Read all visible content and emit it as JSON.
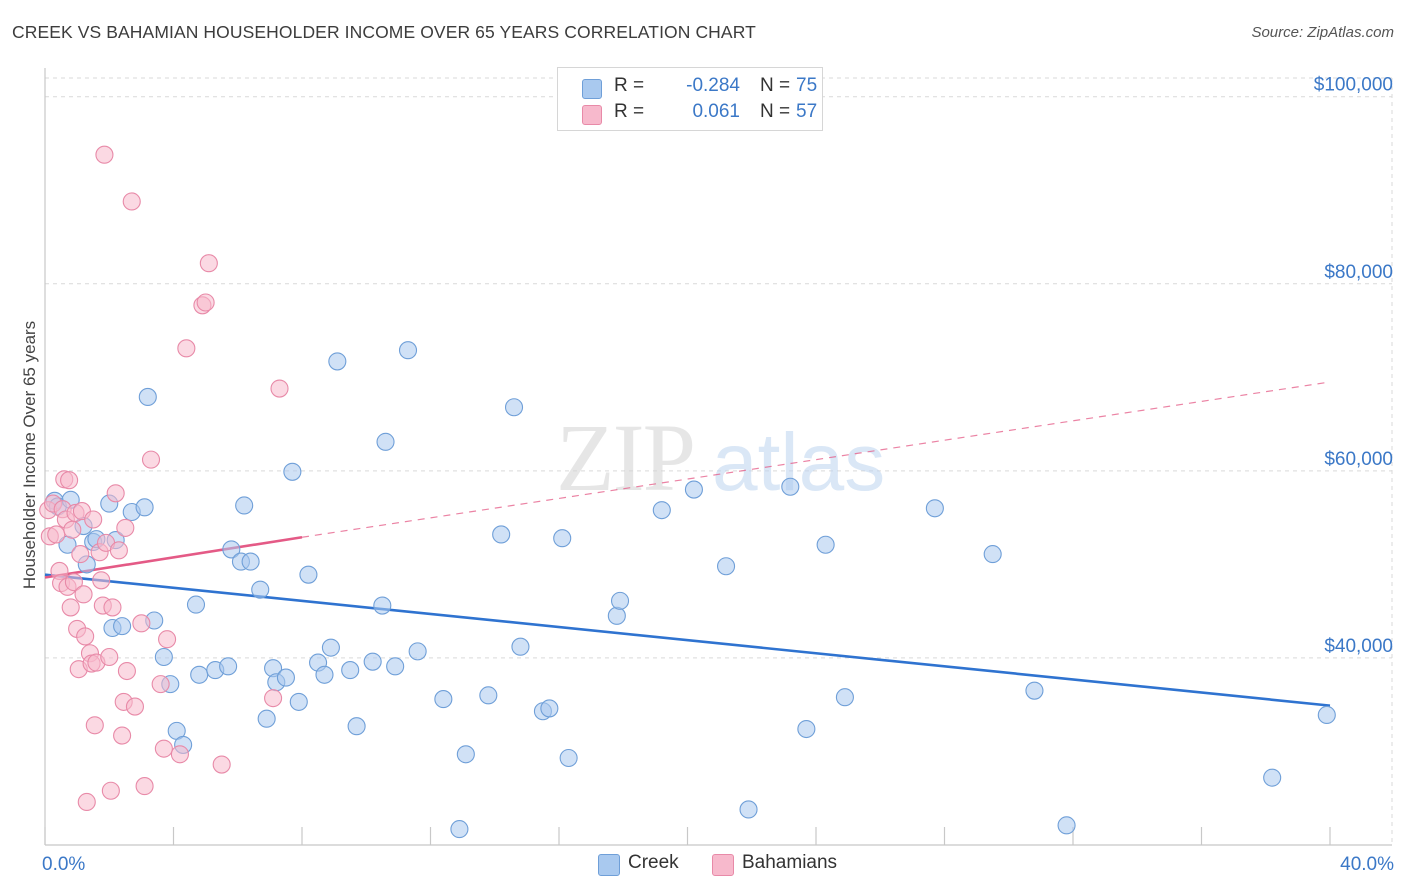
{
  "header": {
    "title": "CREEK VS BAHAMIAN HOUSEHOLDER INCOME OVER 65 YEARS CORRELATION CHART",
    "source": "Source: ZipAtlas.com"
  },
  "watermark": {
    "zip": "ZIP",
    "atlas": "atlas"
  },
  "legend": {
    "rows": [
      {
        "r_label": "R =",
        "r_value": "-0.284",
        "n_label": "N =",
        "n_value": "75"
      },
      {
        "r_label": "R =",
        "r_value": "0.061",
        "n_label": "N =",
        "n_value": "57"
      }
    ],
    "bottom": [
      {
        "label": "Creek"
      },
      {
        "label": "Bahamians"
      }
    ]
  },
  "colors": {
    "creek_fill": "#a9c9ef",
    "creek_stroke": "#6f9fd8",
    "creek_line": "#2f73d0",
    "bahamian_fill": "#f7b9cc",
    "bahamian_stroke": "#e88aa8",
    "bahamian_line": "#e45a86",
    "grid": "#d9d9d9",
    "axis_text": "#3b78c7"
  },
  "chart_data": {
    "type": "scatter",
    "title": "CREEK VS BAHAMIAN HOUSEHOLDER INCOME OVER 65 YEARS CORRELATION CHART",
    "xlabel": "",
    "ylabel": "Householder Income Over 65 years",
    "xlim": [
      0,
      40
    ],
    "ylim": [
      20000,
      102000
    ],
    "x_tick_labels": [
      "0.0%",
      "40.0%"
    ],
    "y_ticks": [
      40000,
      60000,
      80000,
      100000
    ],
    "y_tick_labels": [
      "$40,000",
      "$60,000",
      "$80,000",
      "$100,000"
    ],
    "grid": true,
    "legend_position": "top-center",
    "series": [
      {
        "name": "Creek",
        "points": [
          [
            0.3,
            56800
          ],
          [
            0.4,
            56200
          ],
          [
            0.7,
            52100
          ],
          [
            0.8,
            56900
          ],
          [
            1.2,
            54100
          ],
          [
            1.3,
            50000
          ],
          [
            1.5,
            52400
          ],
          [
            1.6,
            52700
          ],
          [
            2.0,
            56500
          ],
          [
            2.1,
            43200
          ],
          [
            2.2,
            52600
          ],
          [
            2.4,
            43400
          ],
          [
            2.7,
            55600
          ],
          [
            3.1,
            56100
          ],
          [
            3.2,
            67900
          ],
          [
            3.4,
            44000
          ],
          [
            3.7,
            40100
          ],
          [
            3.9,
            37200
          ],
          [
            4.1,
            32200
          ],
          [
            4.3,
            30700
          ],
          [
            4.7,
            45700
          ],
          [
            4.8,
            38200
          ],
          [
            5.3,
            38700
          ],
          [
            5.7,
            39100
          ],
          [
            5.8,
            51600
          ],
          [
            6.1,
            50300
          ],
          [
            6.2,
            56300
          ],
          [
            6.4,
            50300
          ],
          [
            6.7,
            47300
          ],
          [
            6.9,
            33500
          ],
          [
            7.1,
            38900
          ],
          [
            7.2,
            37400
          ],
          [
            7.5,
            37900
          ],
          [
            7.7,
            59900
          ],
          [
            7.9,
            35300
          ],
          [
            8.2,
            48900
          ],
          [
            8.5,
            39500
          ],
          [
            8.7,
            38200
          ],
          [
            8.9,
            41100
          ],
          [
            9.1,
            71700
          ],
          [
            9.5,
            38700
          ],
          [
            9.7,
            32700
          ],
          [
            10.2,
            39600
          ],
          [
            10.5,
            45600
          ],
          [
            10.6,
            63100
          ],
          [
            10.9,
            39100
          ],
          [
            11.3,
            72900
          ],
          [
            11.6,
            40700
          ],
          [
            12.4,
            35600
          ],
          [
            12.9,
            21700
          ],
          [
            13.1,
            29700
          ],
          [
            13.8,
            36000
          ],
          [
            14.2,
            53200
          ],
          [
            14.6,
            66800
          ],
          [
            14.8,
            41200
          ],
          [
            15.5,
            34300
          ],
          [
            15.7,
            34600
          ],
          [
            16.1,
            52800
          ],
          [
            16.3,
            29300
          ],
          [
            17.8,
            44500
          ],
          [
            17.9,
            46100
          ],
          [
            19.2,
            55800
          ],
          [
            20.2,
            58000
          ],
          [
            21.2,
            49800
          ],
          [
            21.9,
            23800
          ],
          [
            23.2,
            58300
          ],
          [
            23.7,
            32400
          ],
          [
            24.3,
            52100
          ],
          [
            24.9,
            35800
          ],
          [
            27.7,
            56000
          ],
          [
            29.5,
            51100
          ],
          [
            30.8,
            36500
          ],
          [
            31.8,
            22100
          ],
          [
            38.2,
            27200
          ],
          [
            39.9,
            33900
          ]
        ]
      },
      {
        "name": "Bahamians",
        "points": [
          [
            0.1,
            55800
          ],
          [
            0.15,
            53000
          ],
          [
            0.25,
            56500
          ],
          [
            0.35,
            53200
          ],
          [
            0.45,
            49300
          ],
          [
            0.5,
            48000
          ],
          [
            0.55,
            55900
          ],
          [
            0.6,
            59100
          ],
          [
            0.65,
            54800
          ],
          [
            0.7,
            47600
          ],
          [
            0.75,
            59000
          ],
          [
            0.8,
            45400
          ],
          [
            0.85,
            53700
          ],
          [
            0.9,
            48100
          ],
          [
            0.95,
            55500
          ],
          [
            1.0,
            43100
          ],
          [
            1.05,
            38800
          ],
          [
            1.1,
            51100
          ],
          [
            1.15,
            55700
          ],
          [
            1.2,
            46800
          ],
          [
            1.25,
            42300
          ],
          [
            1.3,
            24600
          ],
          [
            1.4,
            40500
          ],
          [
            1.45,
            39400
          ],
          [
            1.5,
            54800
          ],
          [
            1.55,
            32800
          ],
          [
            1.6,
            39500
          ],
          [
            1.7,
            51300
          ],
          [
            1.75,
            48300
          ],
          [
            1.8,
            45600
          ],
          [
            1.85,
            93800
          ],
          [
            1.9,
            52300
          ],
          [
            2.0,
            40100
          ],
          [
            2.1,
            45400
          ],
          [
            2.2,
            57600
          ],
          [
            2.3,
            51500
          ],
          [
            2.4,
            31700
          ],
          [
            2.45,
            35300
          ],
          [
            2.5,
            53900
          ],
          [
            2.55,
            38600
          ],
          [
            2.7,
            88800
          ],
          [
            2.8,
            34800
          ],
          [
            3.0,
            43700
          ],
          [
            3.1,
            26300
          ],
          [
            3.3,
            61200
          ],
          [
            3.6,
            37200
          ],
          [
            3.7,
            30300
          ],
          [
            3.8,
            42000
          ],
          [
            4.2,
            29700
          ],
          [
            4.4,
            73100
          ],
          [
            4.9,
            77700
          ],
          [
            5.0,
            78000
          ],
          [
            5.1,
            82200
          ],
          [
            5.5,
            28600
          ],
          [
            7.1,
            35700
          ],
          [
            7.3,
            68800
          ],
          [
            2.05,
            25800
          ]
        ]
      }
    ],
    "trendlines": [
      {
        "series": "Creek",
        "x": [
          0,
          40
        ],
        "y": [
          48900,
          34900
        ],
        "style": "solid"
      },
      {
        "series": "Bahamians",
        "x": [
          0,
          8
        ],
        "y": [
          48600,
          52900
        ],
        "style": "solid"
      },
      {
        "series": "Bahamians",
        "x": [
          8,
          40
        ],
        "y": [
          52900,
          69500
        ],
        "style": "dashed"
      }
    ]
  }
}
